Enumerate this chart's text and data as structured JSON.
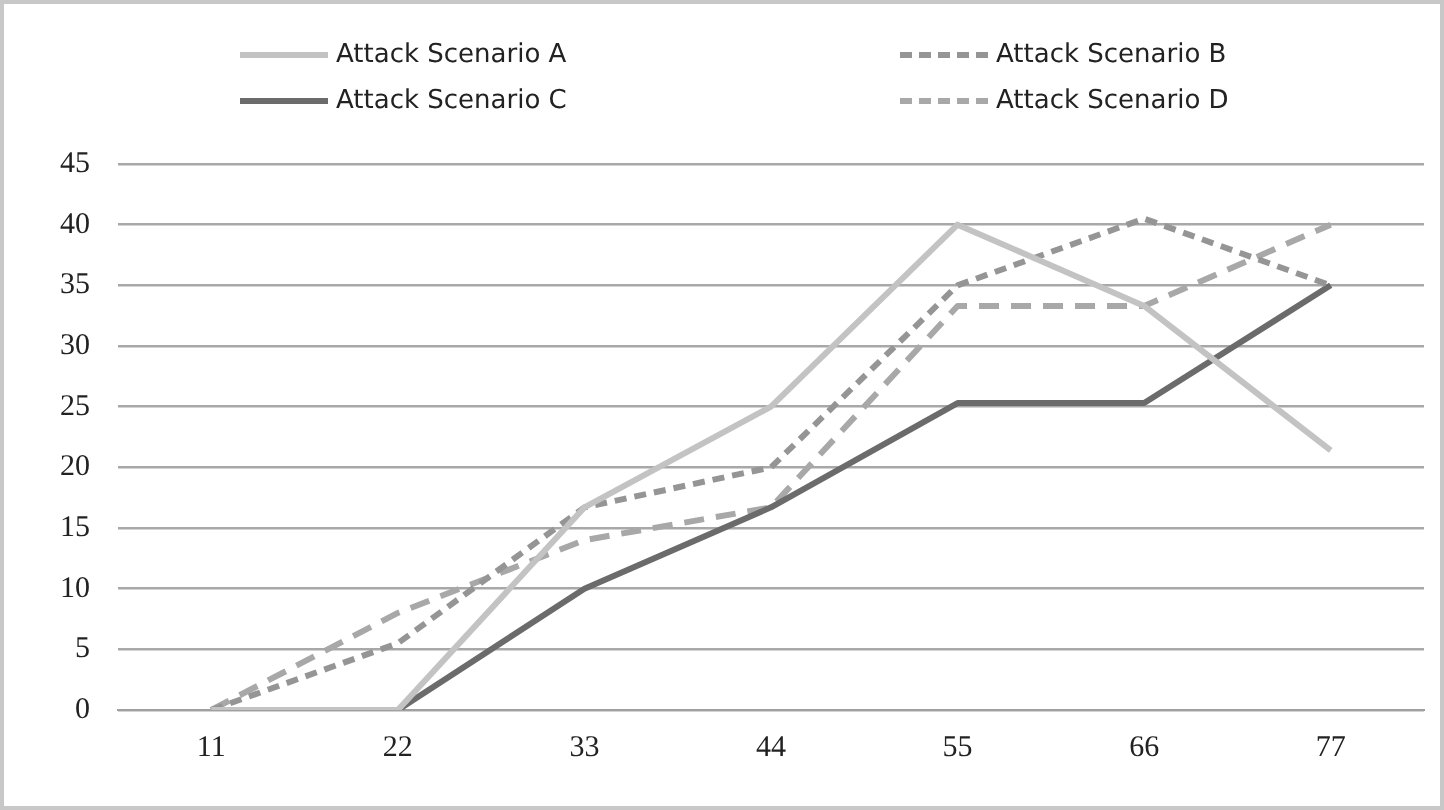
{
  "chart_data": {
    "type": "line",
    "categories": [
      "11",
      "22",
      "33",
      "44",
      "55",
      "66",
      "77"
    ],
    "series": [
      {
        "name": "Attack Scenario A",
        "color": "#c3c3c3",
        "line_style": "solid",
        "values": [
          0,
          0,
          16.7,
          25,
          40,
          33.3,
          21.4
        ]
      },
      {
        "name": "Attack Scenario B",
        "color": "#959595",
        "line_style": "dotted",
        "values": [
          0,
          5.5,
          16.7,
          20,
          35,
          40.5,
          35
        ]
      },
      {
        "name": "Attack Scenario C",
        "color": "#6b6b6b",
        "line_style": "solid",
        "values": [
          0,
          0,
          10,
          16.7,
          25.3,
          25.3,
          35
        ]
      },
      {
        "name": "Attack Scenario D",
        "color": "#a8a8a8",
        "line_style": "dashed",
        "values": [
          0,
          8,
          14,
          16.7,
          33.3,
          33.3,
          40
        ]
      }
    ],
    "ylim": [
      0,
      45
    ],
    "yticks": [
      0,
      5,
      10,
      15,
      20,
      25,
      30,
      35,
      40,
      45
    ],
    "grid": "y",
    "legend": "top",
    "marker": "none"
  }
}
